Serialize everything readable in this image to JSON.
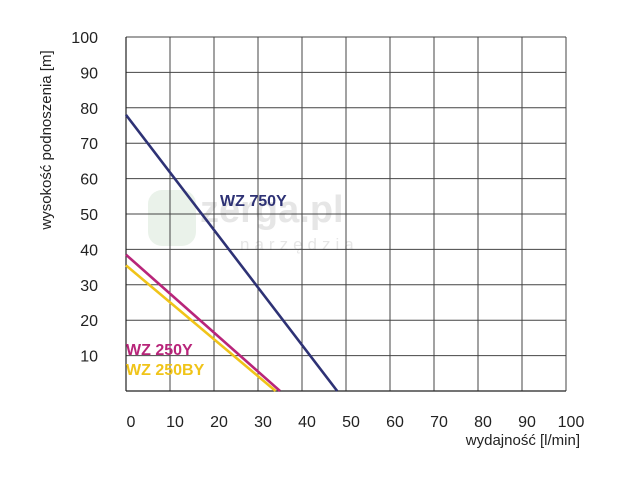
{
  "chart_data": {
    "type": "line",
    "xlabel": "wydajność [l/min]",
    "ylabel": "wysokość podnoszenia [m]",
    "xlim": [
      0,
      100
    ],
    "ylim": [
      0,
      100
    ],
    "x_ticks": [
      "0",
      "10",
      "20",
      "30",
      "40",
      "50",
      "60",
      "70",
      "80",
      "90",
      "100"
    ],
    "y_ticks": [
      "10",
      "20",
      "30",
      "40",
      "50",
      "60",
      "70",
      "80",
      "90",
      "100"
    ],
    "grid": true,
    "series": [
      {
        "name": "WZ 750Y",
        "color": "#2e3275",
        "points": [
          [
            0,
            78
          ],
          [
            48,
            0
          ]
        ]
      },
      {
        "name": "WZ 250Y",
        "color": "#b8257a",
        "points": [
          [
            0,
            38.5
          ],
          [
            35,
            0
          ]
        ]
      },
      {
        "name": "WZ 250BY",
        "color": "#f0c419",
        "points": [
          [
            0,
            35.5
          ],
          [
            34,
            0
          ]
        ]
      }
    ]
  },
  "watermark": {
    "brand": "zerga.pl",
    "sub": "narzędzia"
  }
}
